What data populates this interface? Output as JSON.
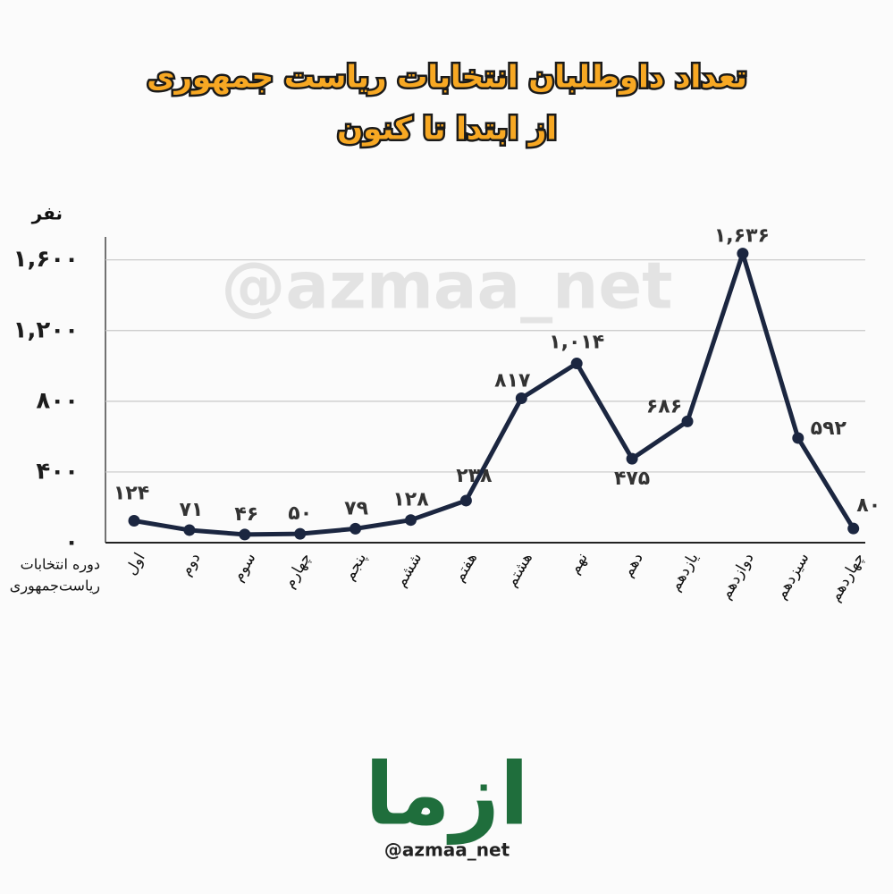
{
  "watermark": "@azmaa_net",
  "brand": "ازما",
  "handle": "@azmaa_net",
  "chart_data": {
    "type": "line",
    "title": "تعداد داوطلبان انتخابات ریاست جمهوری",
    "subtitle": "از ابتدا تا کنون",
    "y_label": "نفر",
    "x_label": [
      "دوره انتخابات",
      "ریاست‌جمهوری"
    ],
    "categories": [
      "اول",
      "دوم",
      "سوم",
      "چهارم",
      "پنجم",
      "ششم",
      "هفتم",
      "هشتم",
      "نهم",
      "دهم",
      "یازدهم",
      "دوازدهم",
      "سیزدهم",
      "چهاردهم"
    ],
    "values": [
      124,
      71,
      46,
      50,
      79,
      128,
      238,
      817,
      1014,
      475,
      686,
      1636,
      592,
      80
    ],
    "value_labels": [
      "۱۲۴",
      "۷۱",
      "۴۶",
      "۵۰",
      "۷۹",
      "۱۲۸",
      "۲۳۸",
      "۸۱۷",
      "۱,۰۱۴",
      "۴۷۵",
      "۶۸۶",
      "۱,۶۳۶",
      "۵۹۲",
      "۸۰"
    ],
    "color": "#1b2640",
    "ylim": [
      0,
      1730
    ],
    "yticks": [
      {
        "value": 0,
        "label": "۰"
      },
      {
        "value": 400,
        "label": "۴۰۰"
      },
      {
        "value": 800,
        "label": "۸۰۰"
      },
      {
        "value": 1200,
        "label": "۱,۲۰۰"
      },
      {
        "value": 1600,
        "label": "۱,۶۰۰"
      }
    ],
    "grid": true
  }
}
